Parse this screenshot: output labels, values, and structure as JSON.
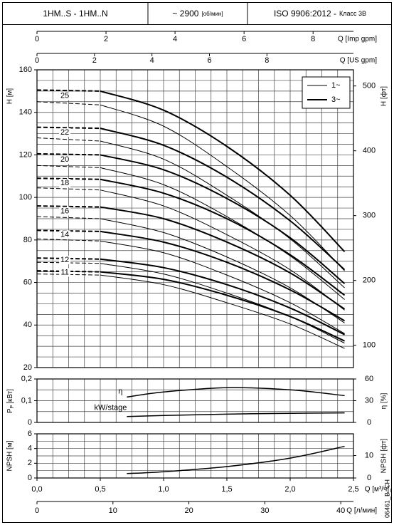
{
  "header": {
    "model": "1HM..S - 1HM..N",
    "speed": "~ 2900",
    "speed_unit": "[об/мин]",
    "standard": "ISO 9906:2012 -",
    "grade": "Класс 3B"
  },
  "chart_data": [
    {
      "type": "axis",
      "xlabel": "Q [Imp gpm]",
      "xlim": [
        0,
        9.17
      ],
      "xticks": [
        0,
        2,
        4,
        6,
        8
      ]
    },
    {
      "type": "axis",
      "xlabel": "Q [US gpm]",
      "xlim": [
        0,
        11.01
      ],
      "xticks": [
        0,
        2,
        4,
        6,
        8
      ]
    },
    {
      "type": "line",
      "ylabel": "H [м]",
      "y2label": "H [фт]",
      "xlim": [
        0,
        2.5
      ],
      "ylim": [
        20,
        160
      ],
      "yticks": [
        20,
        40,
        60,
        80,
        100,
        120,
        140,
        160
      ],
      "y2lim": [
        65.6,
        524.9
      ],
      "y2ticks": [
        100,
        200,
        300,
        400,
        500
      ],
      "xgrid": [
        0,
        0.125,
        0.25,
        0.375,
        0.5,
        0.625,
        0.75,
        0.875,
        1,
        1.125,
        1.25,
        1.375,
        1.5,
        1.625,
        1.75,
        1.875,
        2,
        2.125,
        2.25,
        2.375,
        2.5
      ],
      "ygrid": [
        20,
        25,
        30,
        35,
        40,
        45,
        50,
        55,
        60,
        65,
        70,
        75,
        80,
        85,
        90,
        95,
        100,
        105,
        110,
        115,
        120,
        125,
        130,
        135,
        140,
        145,
        150,
        155,
        160
      ],
      "legend": [
        "1~",
        "3~"
      ],
      "legend_position": "upper right",
      "dashed_until": 0.5,
      "x": [
        0,
        0.5,
        1,
        1.5,
        2,
        2.43
      ],
      "stages": [
        {
          "label": "25",
          "single_phase": [
            145,
            143.5,
            133.5,
            114.5,
            91.5,
            65.5
          ],
          "three_phase": [
            150.5,
            150,
            141,
            124,
            101,
            74.5
          ]
        },
        {
          "label": "22",
          "single_phase": [
            128,
            126.5,
            118,
            101,
            80.5,
            57.5
          ],
          "three_phase": [
            133,
            132.5,
            124.5,
            109.5,
            89,
            66
          ]
        },
        {
          "label": "20",
          "single_phase": [
            115,
            114,
            106,
            91,
            72.5,
            52
          ],
          "three_phase": [
            120.5,
            120,
            113,
            99.5,
            81,
            59.5
          ]
        },
        {
          "label": "18",
          "single_phase": [
            104.5,
            103.5,
            96,
            82.5,
            66,
            47
          ],
          "three_phase": [
            109,
            108.5,
            102,
            90,
            73,
            54
          ]
        },
        {
          "label": "16",
          "single_phase": [
            91,
            90,
            83.5,
            72,
            57.5,
            41
          ],
          "three_phase": [
            96,
            95.5,
            90,
            79,
            64.5,
            47.5
          ]
        },
        {
          "label": "14",
          "single_phase": [
            80.5,
            79.5,
            74,
            63.5,
            50.5,
            36
          ],
          "three_phase": [
            84.5,
            84,
            79,
            69.5,
            56.5,
            42
          ]
        },
        {
          "label": "12",
          "single_phase": [
            69.5,
            69,
            64,
            55,
            44,
            31.5
          ],
          "three_phase": [
            71.5,
            71,
            67,
            59,
            48,
            35.5
          ]
        },
        {
          "label": "11",
          "single_phase": [
            64,
            63.5,
            59,
            50.5,
            40.5,
            29
          ],
          "three_phase": [
            65.5,
            65,
            61.5,
            54,
            44,
            32.5
          ]
        }
      ]
    },
    {
      "type": "line",
      "ylabel": "P",
      "ylabel_sub": "P",
      "ylabel_unit": "[кВт]",
      "y2label": "η [%]",
      "xlim": [
        0,
        2.5
      ],
      "ylim": [
        0,
        0.2
      ],
      "yticks": [
        0,
        {
          "value": 0.1,
          "label": "0,1"
        },
        {
          "value": 0.2,
          "label": "0,2"
        }
      ],
      "ygrid": [
        0,
        0.05,
        0.1,
        0.15,
        0.2
      ],
      "y2lim": [
        0,
        60
      ],
      "y2ticks": [
        0,
        30,
        60
      ],
      "x": [
        0.71,
        1,
        1.5,
        2,
        2.43
      ],
      "series": [
        {
          "name": "η",
          "axis": "y2",
          "values": [
            35,
            42,
            48,
            45,
            37
          ]
        },
        {
          "name": "kW/stage",
          "values": [
            0.027,
            0.032,
            0.038,
            0.042,
            0.044
          ]
        }
      ]
    },
    {
      "type": "line",
      "ylabel": "NPSH [м]",
      "y2label": "NPSH [фт]",
      "xlim": [
        0,
        2.5
      ],
      "ylim": [
        0,
        6
      ],
      "yticks": [
        0,
        2,
        4,
        6
      ],
      "ygrid": [
        0,
        1,
        2,
        3,
        4,
        5,
        6
      ],
      "y2lim": [
        0,
        19.7
      ],
      "y2ticks": [
        0,
        10
      ],
      "x": [
        0.71,
        1,
        1.5,
        2,
        2.43
      ],
      "values": [
        0.6,
        0.85,
        1.55,
        2.7,
        4.3
      ]
    },
    {
      "type": "axis",
      "xlabel": "Q [м³/ч]",
      "xlim": [
        0,
        2.5
      ],
      "xticks": [
        {
          "value": 0,
          "label": "0,0"
        },
        {
          "value": 0.5,
          "label": "0,5"
        },
        {
          "value": 1,
          "label": "1,0"
        },
        {
          "value": 1.5,
          "label": "1,5"
        },
        {
          "value": 2,
          "label": "2,0"
        },
        {
          "value": 2.5,
          "label": "2,5"
        }
      ]
    },
    {
      "type": "axis",
      "xlabel": "Q [л/мин]",
      "xlim": [
        0,
        41.67
      ],
      "xticks": [
        0,
        10,
        20,
        30,
        40
      ]
    }
  ],
  "code": "06461_B_CH"
}
